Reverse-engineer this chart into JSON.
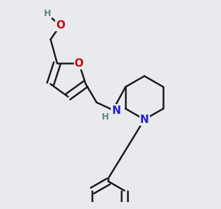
{
  "bg_color": "#e8eaed",
  "bond_color": "#1a1a1a",
  "oxygen_color": "#cc0000",
  "nitrogen_color": "#2222cc",
  "hydrogen_color": "#558888",
  "line_width": 1.8,
  "font_size_atom": 11,
  "font_size_H": 9
}
